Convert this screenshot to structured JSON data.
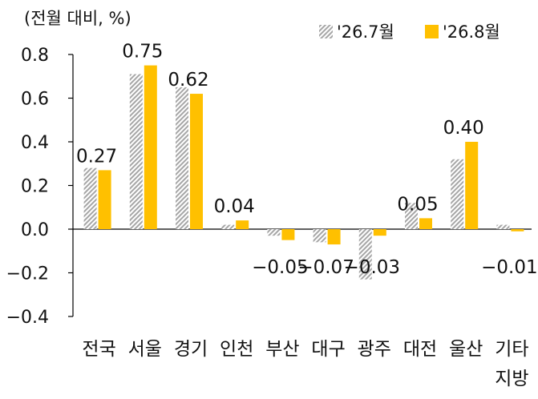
{
  "chart_data": {
    "type": "bar",
    "unit_label": "(전월 대비, %)",
    "categories": [
      "전국",
      "서울",
      "경기",
      "인천",
      "부산",
      "대구",
      "광주",
      "대전",
      "울산",
      "기타 지방"
    ],
    "series": [
      {
        "name": "'26.7월",
        "values": [
          0.28,
          0.71,
          0.65,
          0.02,
          -0.03,
          -0.06,
          -0.23,
          0.12,
          0.32,
          0.02
        ],
        "color": "#a6a6a6",
        "pattern": "diagonal-stripes"
      },
      {
        "name": "'26.8월",
        "values": [
          0.27,
          0.75,
          0.62,
          0.04,
          -0.05,
          -0.07,
          -0.03,
          0.05,
          0.4,
          -0.01
        ],
        "color": "#ffc000",
        "pattern": "solid"
      }
    ],
    "data_labels": [
      "0.27",
      "0.75",
      "0.62",
      "0.04",
      "−0.05",
      "−0.07",
      "−0.03",
      "0.05",
      "0.40",
      "−0.01"
    ],
    "y_ticks": [
      "0.8",
      "0.6",
      "0.4",
      "0.2",
      "0.0",
      "−0.2",
      "−0.4"
    ],
    "ylim": [
      -0.4,
      0.8
    ],
    "grid": false,
    "legend": "top-right"
  }
}
